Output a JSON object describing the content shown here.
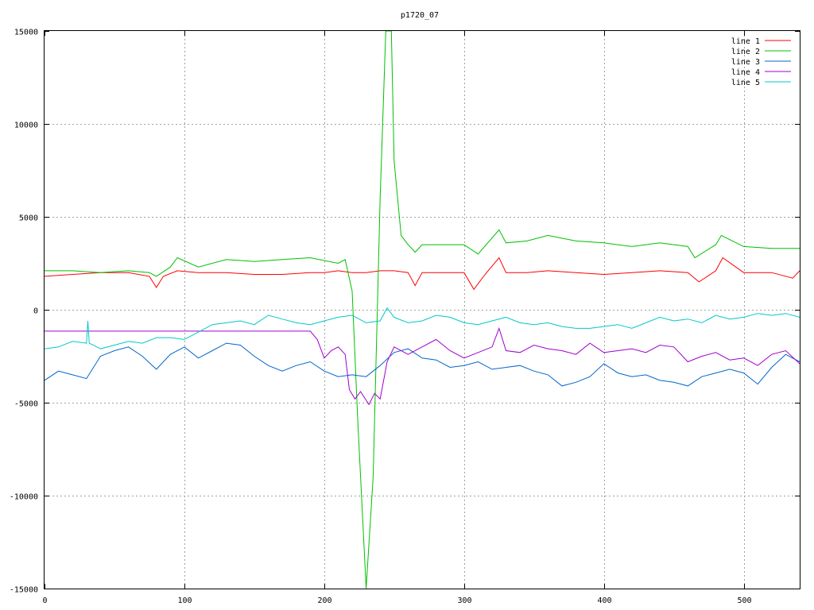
{
  "chart_data": {
    "type": "line",
    "title": "p1720_07",
    "xlabel": "",
    "ylabel": "",
    "xlim": [
      0,
      540
    ],
    "ylim": [
      -15000,
      15000
    ],
    "xticks": [
      0,
      100,
      200,
      300,
      400,
      500
    ],
    "yticks": [
      -15000,
      -10000,
      -5000,
      0,
      5000,
      10000,
      15000
    ],
    "grid": true,
    "legend_position": "top-right",
    "series": [
      {
        "name": "line 1",
        "color": "#ff0000",
        "x": [
          0,
          20,
          40,
          60,
          75,
          80,
          85,
          95,
          110,
          130,
          150,
          170,
          190,
          200,
          210,
          220,
          230,
          240,
          250,
          260,
          265,
          270,
          280,
          290,
          300,
          307,
          315,
          325,
          330,
          345,
          360,
          380,
          400,
          420,
          440,
          460,
          468,
          480,
          485,
          500,
          520,
          535,
          540
        ],
        "y": [
          1800,
          1900,
          2000,
          2000,
          1800,
          1200,
          1800,
          2100,
          2000,
          2000,
          1900,
          1900,
          2000,
          2000,
          2100,
          2000,
          2000,
          2100,
          2100,
          2000,
          1300,
          2000,
          2000,
          2000,
          2000,
          1100,
          1900,
          2800,
          2000,
          2000,
          2100,
          2000,
          1900,
          2000,
          2100,
          2000,
          1500,
          2100,
          2800,
          2000,
          2000,
          1700,
          2100
        ]
      },
      {
        "name": "line 2",
        "color": "#00c000",
        "x": [
          0,
          20,
          40,
          60,
          75,
          80,
          90,
          95,
          110,
          130,
          150,
          170,
          190,
          210,
          215,
          220,
          224,
          230,
          235,
          240,
          244,
          248,
          250,
          255,
          260,
          265,
          270,
          280,
          300,
          310,
          325,
          330,
          345,
          360,
          380,
          400,
          420,
          440,
          460,
          465,
          480,
          484,
          500,
          520,
          540
        ],
        "y": [
          2100,
          2100,
          2000,
          2100,
          2000,
          1800,
          2300,
          2800,
          2300,
          2700,
          2600,
          2700,
          2800,
          2500,
          2700,
          1000,
          -6000,
          -15000,
          -9000,
          6000,
          15000,
          15000,
          8000,
          4000,
          3500,
          3100,
          3500,
          3500,
          3500,
          3000,
          4300,
          3600,
          3700,
          4000,
          3700,
          3600,
          3400,
          3600,
          3400,
          2800,
          3500,
          4000,
          3400,
          3300,
          3300
        ]
      },
      {
        "name": "line 3",
        "color": "#0066cc",
        "x": [
          0,
          10,
          20,
          30,
          40,
          50,
          60,
          70,
          80,
          90,
          100,
          110,
          120,
          130,
          140,
          150,
          160,
          170,
          180,
          190,
          200,
          210,
          220,
          230,
          240,
          250,
          260,
          270,
          280,
          290,
          300,
          310,
          320,
          330,
          340,
          350,
          360,
          370,
          380,
          390,
          400,
          410,
          420,
          430,
          440,
          450,
          460,
          470,
          480,
          490,
          500,
          510,
          520,
          530,
          540
        ],
        "y": [
          -3800,
          -3300,
          -3500,
          -3700,
          -2500,
          -2200,
          -2000,
          -2500,
          -3200,
          -2400,
          -2000,
          -2600,
          -2200,
          -1800,
          -1900,
          -2500,
          -3000,
          -3300,
          -3000,
          -2800,
          -3300,
          -3600,
          -3500,
          -3600,
          -3000,
          -2300,
          -2100,
          -2600,
          -2700,
          -3100,
          -3000,
          -2800,
          -3200,
          -3100,
          -3000,
          -3300,
          -3500,
          -4100,
          -3900,
          -3600,
          -2900,
          -3400,
          -3600,
          -3500,
          -3800,
          -3900,
          -4100,
          -3600,
          -3400,
          -3200,
          -3400,
          -4000,
          -3100,
          -2400,
          -2800
        ]
      },
      {
        "name": "line 4",
        "color": "#a000d0",
        "x": [
          0,
          100,
          190,
          195,
          200,
          205,
          210,
          215,
          218,
          222,
          226,
          232,
          236,
          240,
          245,
          250,
          260,
          270,
          280,
          290,
          300,
          310,
          320,
          325,
          330,
          340,
          350,
          360,
          370,
          380,
          390,
          400,
          410,
          420,
          430,
          440,
          450,
          460,
          470,
          480,
          490,
          500,
          510,
          520,
          530,
          540
        ],
        "y": [
          -1150,
          -1150,
          -1150,
          -1600,
          -2600,
          -2200,
          -2000,
          -2400,
          -4300,
          -4800,
          -4400,
          -5100,
          -4500,
          -4800,
          -2800,
          -2000,
          -2400,
          -2000,
          -1600,
          -2200,
          -2600,
          -2300,
          -2000,
          -1000,
          -2200,
          -2300,
          -1900,
          -2100,
          -2200,
          -2400,
          -1800,
          -2300,
          -2200,
          -2100,
          -2300,
          -1900,
          -2000,
          -2800,
          -2500,
          -2300,
          -2700,
          -2600,
          -3000,
          -2400,
          -2200,
          -2900
        ]
      },
      {
        "name": "line 5",
        "color": "#00c8c8",
        "x": [
          0,
          10,
          20,
          30,
          31,
          32,
          40,
          50,
          60,
          70,
          80,
          90,
          100,
          110,
          120,
          130,
          140,
          150,
          160,
          170,
          180,
          190,
          200,
          210,
          220,
          230,
          240,
          245,
          250,
          260,
          270,
          280,
          290,
          300,
          310,
          320,
          330,
          340,
          350,
          360,
          370,
          380,
          390,
          400,
          410,
          420,
          430,
          440,
          450,
          460,
          470,
          480,
          490,
          500,
          510,
          520,
          530,
          540
        ],
        "y": [
          -2100,
          -2000,
          -1700,
          -1800,
          -600,
          -1800,
          -2100,
          -1900,
          -1700,
          -1800,
          -1500,
          -1500,
          -1600,
          -1200,
          -800,
          -700,
          -600,
          -800,
          -300,
          -500,
          -700,
          -800,
          -600,
          -400,
          -300,
          -700,
          -600,
          100,
          -400,
          -700,
          -600,
          -300,
          -400,
          -700,
          -800,
          -600,
          -400,
          -700,
          -800,
          -700,
          -900,
          -1000,
          -1000,
          -900,
          -800,
          -1000,
          -700,
          -400,
          -600,
          -500,
          -700,
          -300,
          -500,
          -400,
          -200,
          -300,
          -200,
          -400
        ]
      }
    ]
  }
}
